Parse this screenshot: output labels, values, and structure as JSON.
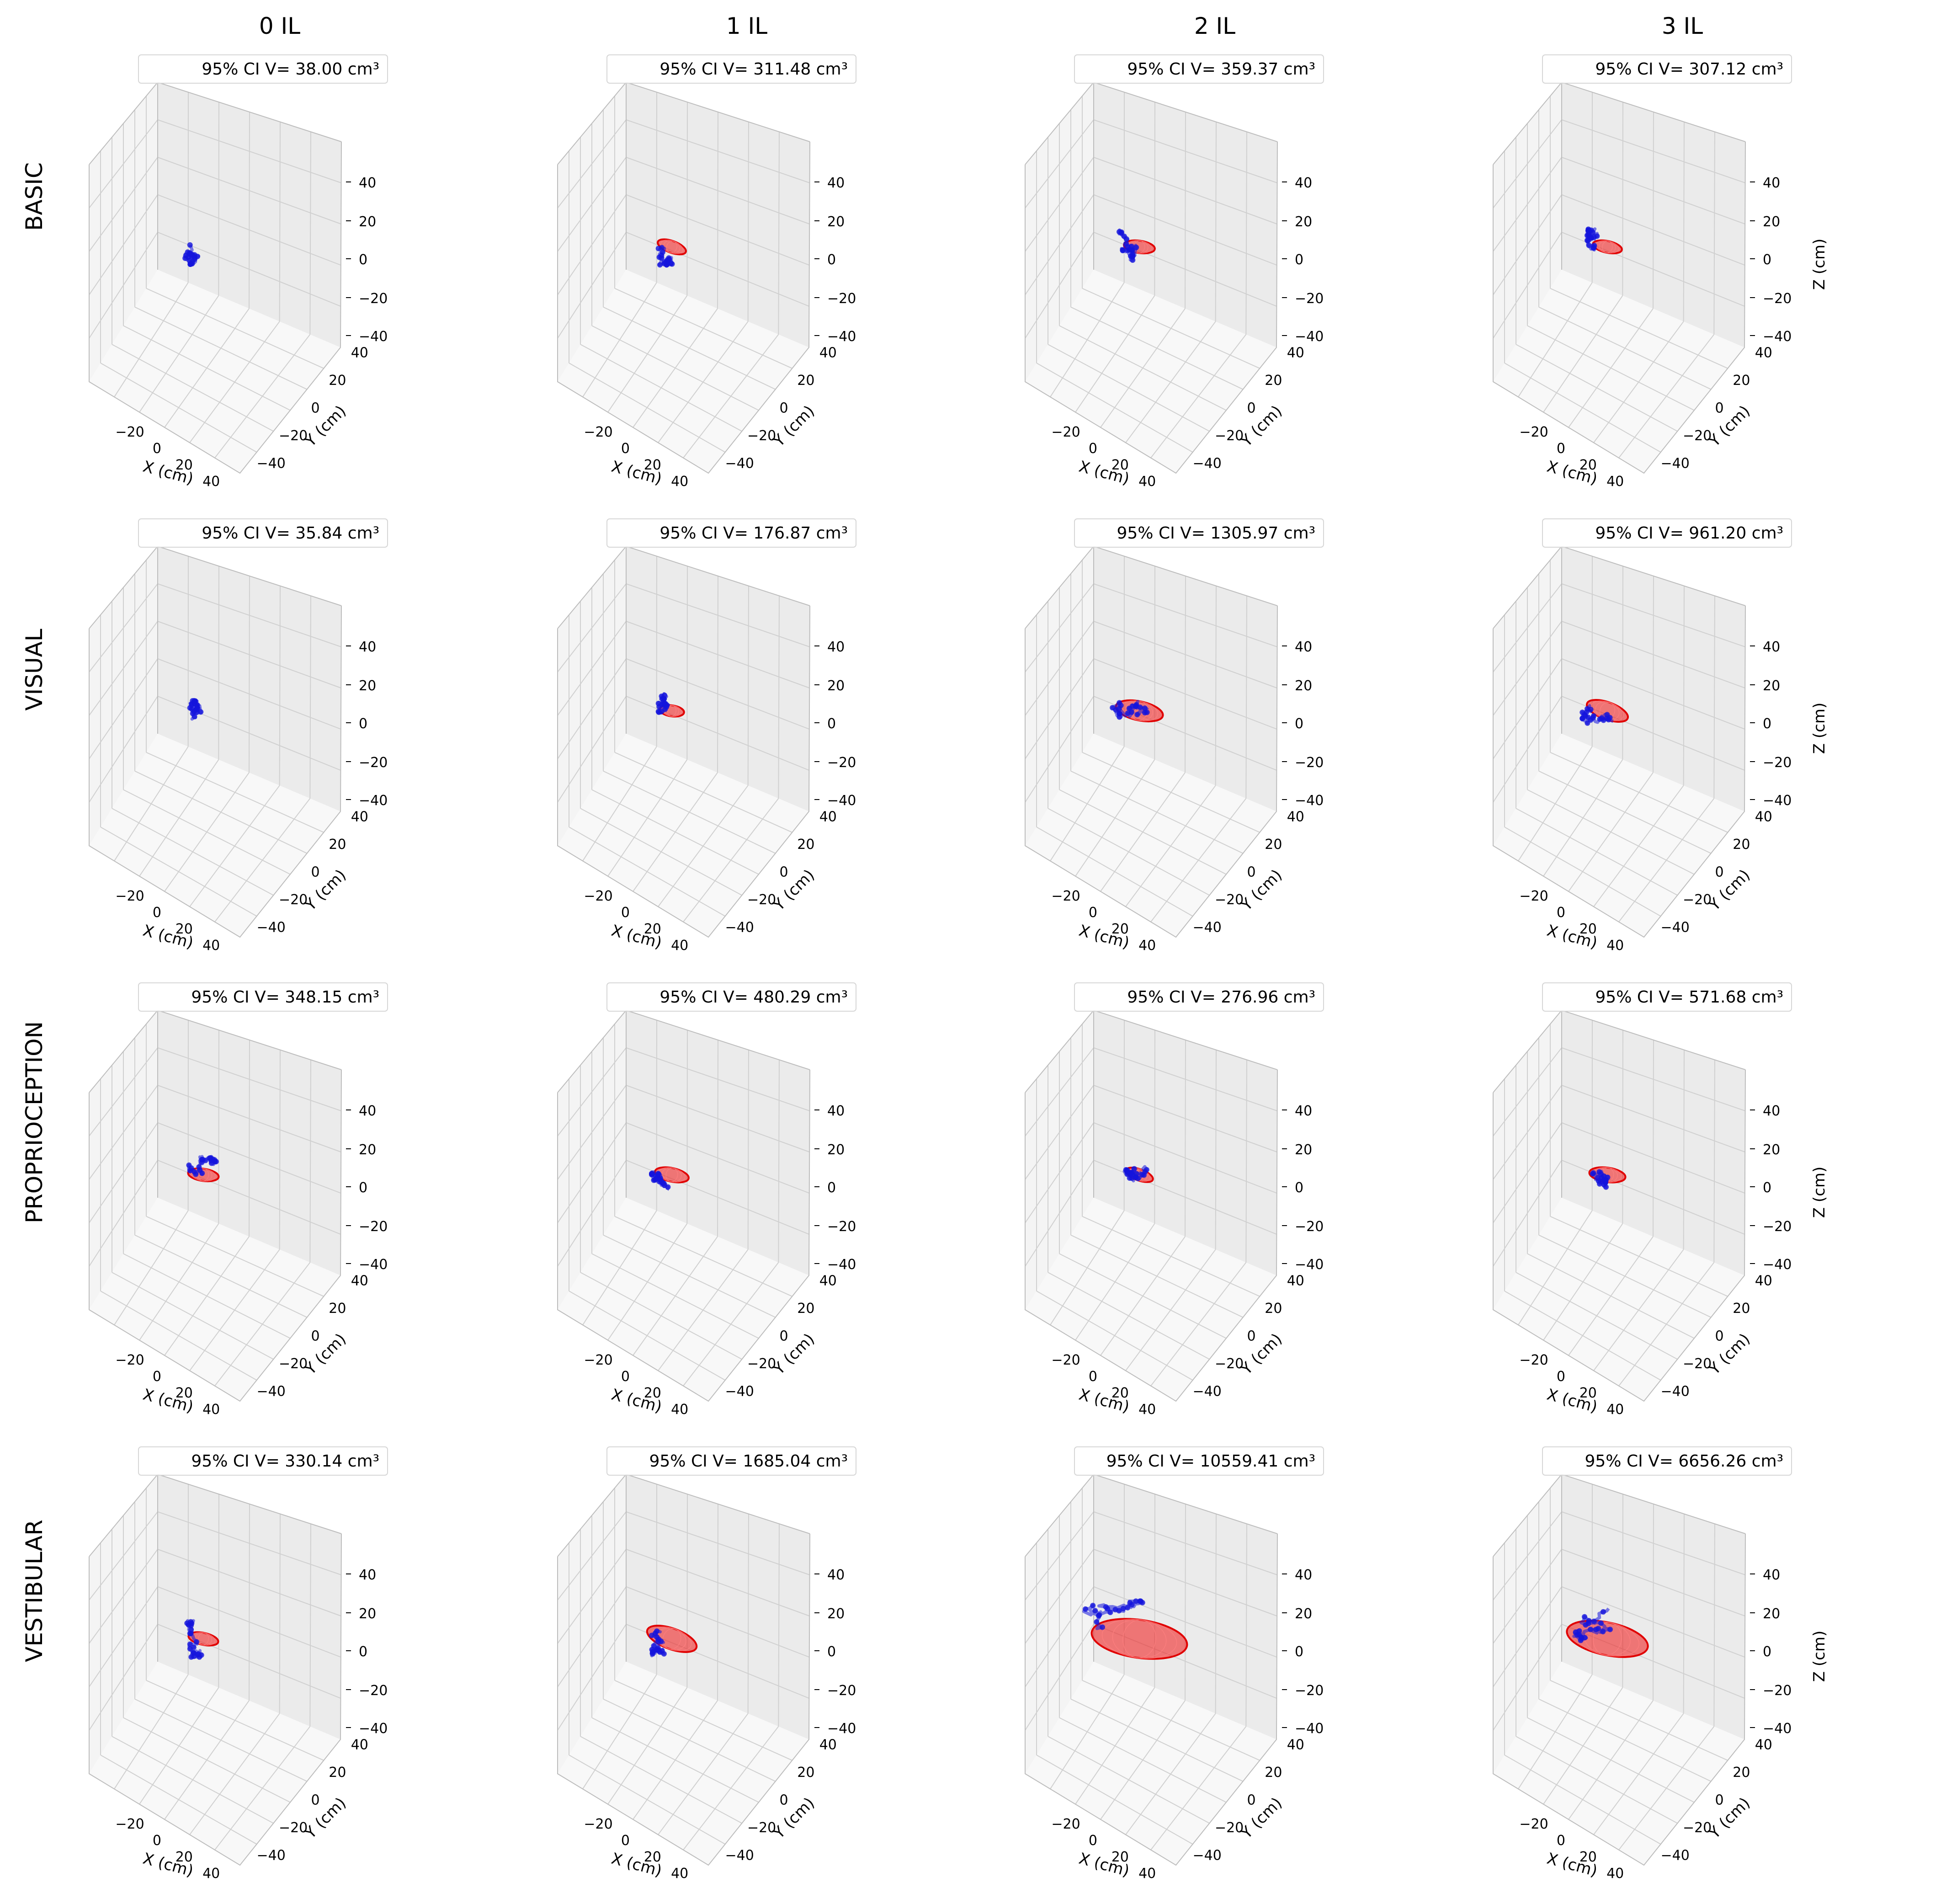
{
  "chart_data": {
    "type": "scatter3d",
    "title": "",
    "columns": [
      "0 IL",
      "1 IL",
      "2 IL",
      "3 IL"
    ],
    "rows": [
      "BASIC",
      "VISUAL",
      "PROPRIOCEPTION",
      "VESTIBULAR"
    ],
    "axes": {
      "xlabel": "X (cm)",
      "ylabel": "Y (cm)",
      "zlabel": "Z (cm)",
      "xticks": [
        "−20",
        "0",
        "20",
        "40"
      ],
      "yticks": [
        "−40",
        "−20",
        "0",
        "20",
        "40"
      ],
      "zticks": [
        "40",
        "20",
        "0",
        "−20",
        "−40"
      ],
      "xlim": [
        -40,
        50
      ],
      "ylim": [
        -50,
        50
      ],
      "zlim": [
        -50,
        50
      ]
    },
    "legend_prefix": "95% CI V= ",
    "unit": "cm³",
    "series": [
      {
        "name": "BASIC",
        "volumes": [
          38.0,
          311.48,
          359.37,
          307.12
        ],
        "legends": [
          "95% CI V= 38.00 cm³",
          "95% CI V= 311.48 cm³",
          "95% CI V= 359.37 cm³",
          "95% CI V= 307.12 cm³"
        ]
      },
      {
        "name": "VISUAL",
        "volumes": [
          35.84,
          176.87,
          1305.97,
          961.2
        ],
        "legends": [
          "95% CI V= 35.84 cm³",
          "95% CI V= 176.87 cm³",
          "95% CI V= 1305.97 cm³",
          "95% CI V= 961.20 cm³"
        ]
      },
      {
        "name": "PROPRIOCEPTION",
        "volumes": [
          348.15,
          480.29,
          276.96,
          571.68
        ],
        "legends": [
          "95% CI V= 348.15 cm³",
          "95% CI V= 480.29 cm³",
          "95% CI V= 276.96 cm³",
          "95% CI V= 571.68 cm³"
        ]
      },
      {
        "name": "VESTIBULAR",
        "volumes": [
          330.14,
          1685.04,
          10559.41,
          6656.26
        ],
        "legends": [
          "95% CI V= 330.14 cm³",
          "95% CI V= 1685.04 cm³",
          "95% CI V= 10559.41 cm³",
          "95% CI V= 6656.26 cm³"
        ]
      }
    ],
    "colors": {
      "trajectory": "#1414dc",
      "ellipsoid": "#f01414",
      "ellipsoid_edge": "#e00000",
      "pane": "#f2f2f2",
      "grid": "#d0d0d0"
    }
  }
}
